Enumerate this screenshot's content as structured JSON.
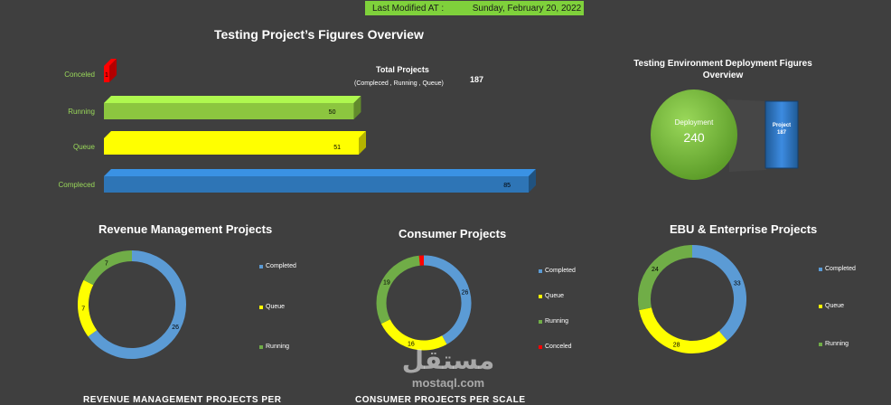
{
  "header": {
    "label": "Last Modified AT :",
    "date": "Sunday, February 20, 2022"
  },
  "bar_chart": {
    "title": "Testing Project’s Figures Overview",
    "total_title": "Total Projects",
    "total_sub": "(Compleced , Running , Queue)",
    "total_value": "187",
    "colors": {
      "Conceled": "#ff0000",
      "Running": "#8cc63f",
      "Queue": "#ffff00",
      "Compleced": "#2e75b6"
    }
  },
  "env": {
    "title_line1": "Testing Environment Deployment Figures",
    "title_line2": "Overview",
    "deployment_label": "Deployment",
    "deployment_value": "240",
    "project_label": "Project",
    "project_value": "187"
  },
  "revenue": {
    "title": "Revenue Management Projects",
    "legend": [
      "Completed",
      "Queue",
      "Running"
    ]
  },
  "consumer": {
    "title": "Consumer Projects",
    "legend": [
      "Completed",
      "Queue",
      "Running",
      "Conceled"
    ]
  },
  "ebu": {
    "title": "EBU & Enterprise Projects",
    "legend": [
      "Completed",
      "Queue",
      "Running"
    ]
  },
  "bottom_titles": {
    "left": "REVENUE MANAGEMENT PROJECTS PER",
    "center": "CONSUMER PROJECTS PER SCALE"
  },
  "watermark": {
    "arabic": "مستقل",
    "latin": "mostaql.com"
  },
  "chart_data": [
    {
      "type": "bar",
      "orientation": "horizontal",
      "title": "Testing Project’s Figures Overview",
      "categories": [
        "Conceled",
        "Running",
        "Queue",
        "Compleced"
      ],
      "values": [
        1,
        50,
        51,
        85
      ],
      "data_labels": [
        "1",
        "50",
        "51",
        "85"
      ],
      "xlim": [
        0,
        85
      ]
    },
    {
      "type": "pie",
      "title": "Revenue Management Projects",
      "labels": [
        "Completed",
        "Queue",
        "Running"
      ],
      "values": [
        26,
        7,
        7
      ],
      "colors": [
        "#5b9bd5",
        "#ffff00",
        "#70ad47"
      ]
    },
    {
      "type": "pie",
      "title": "Consumer Projects",
      "labels": [
        "Completed",
        "Queue",
        "Running",
        "Conceled"
      ],
      "values": [
        26,
        16,
        19,
        1
      ],
      "colors": [
        "#5b9bd5",
        "#ffff00",
        "#70ad47",
        "#ff0000"
      ]
    },
    {
      "type": "pie",
      "title": "EBU & Enterprise Projects",
      "labels": [
        "Completed",
        "Queue",
        "Running"
      ],
      "values": [
        33,
        28,
        24
      ],
      "colors": [
        "#5b9bd5",
        "#ffff00",
        "#70ad47"
      ]
    }
  ]
}
